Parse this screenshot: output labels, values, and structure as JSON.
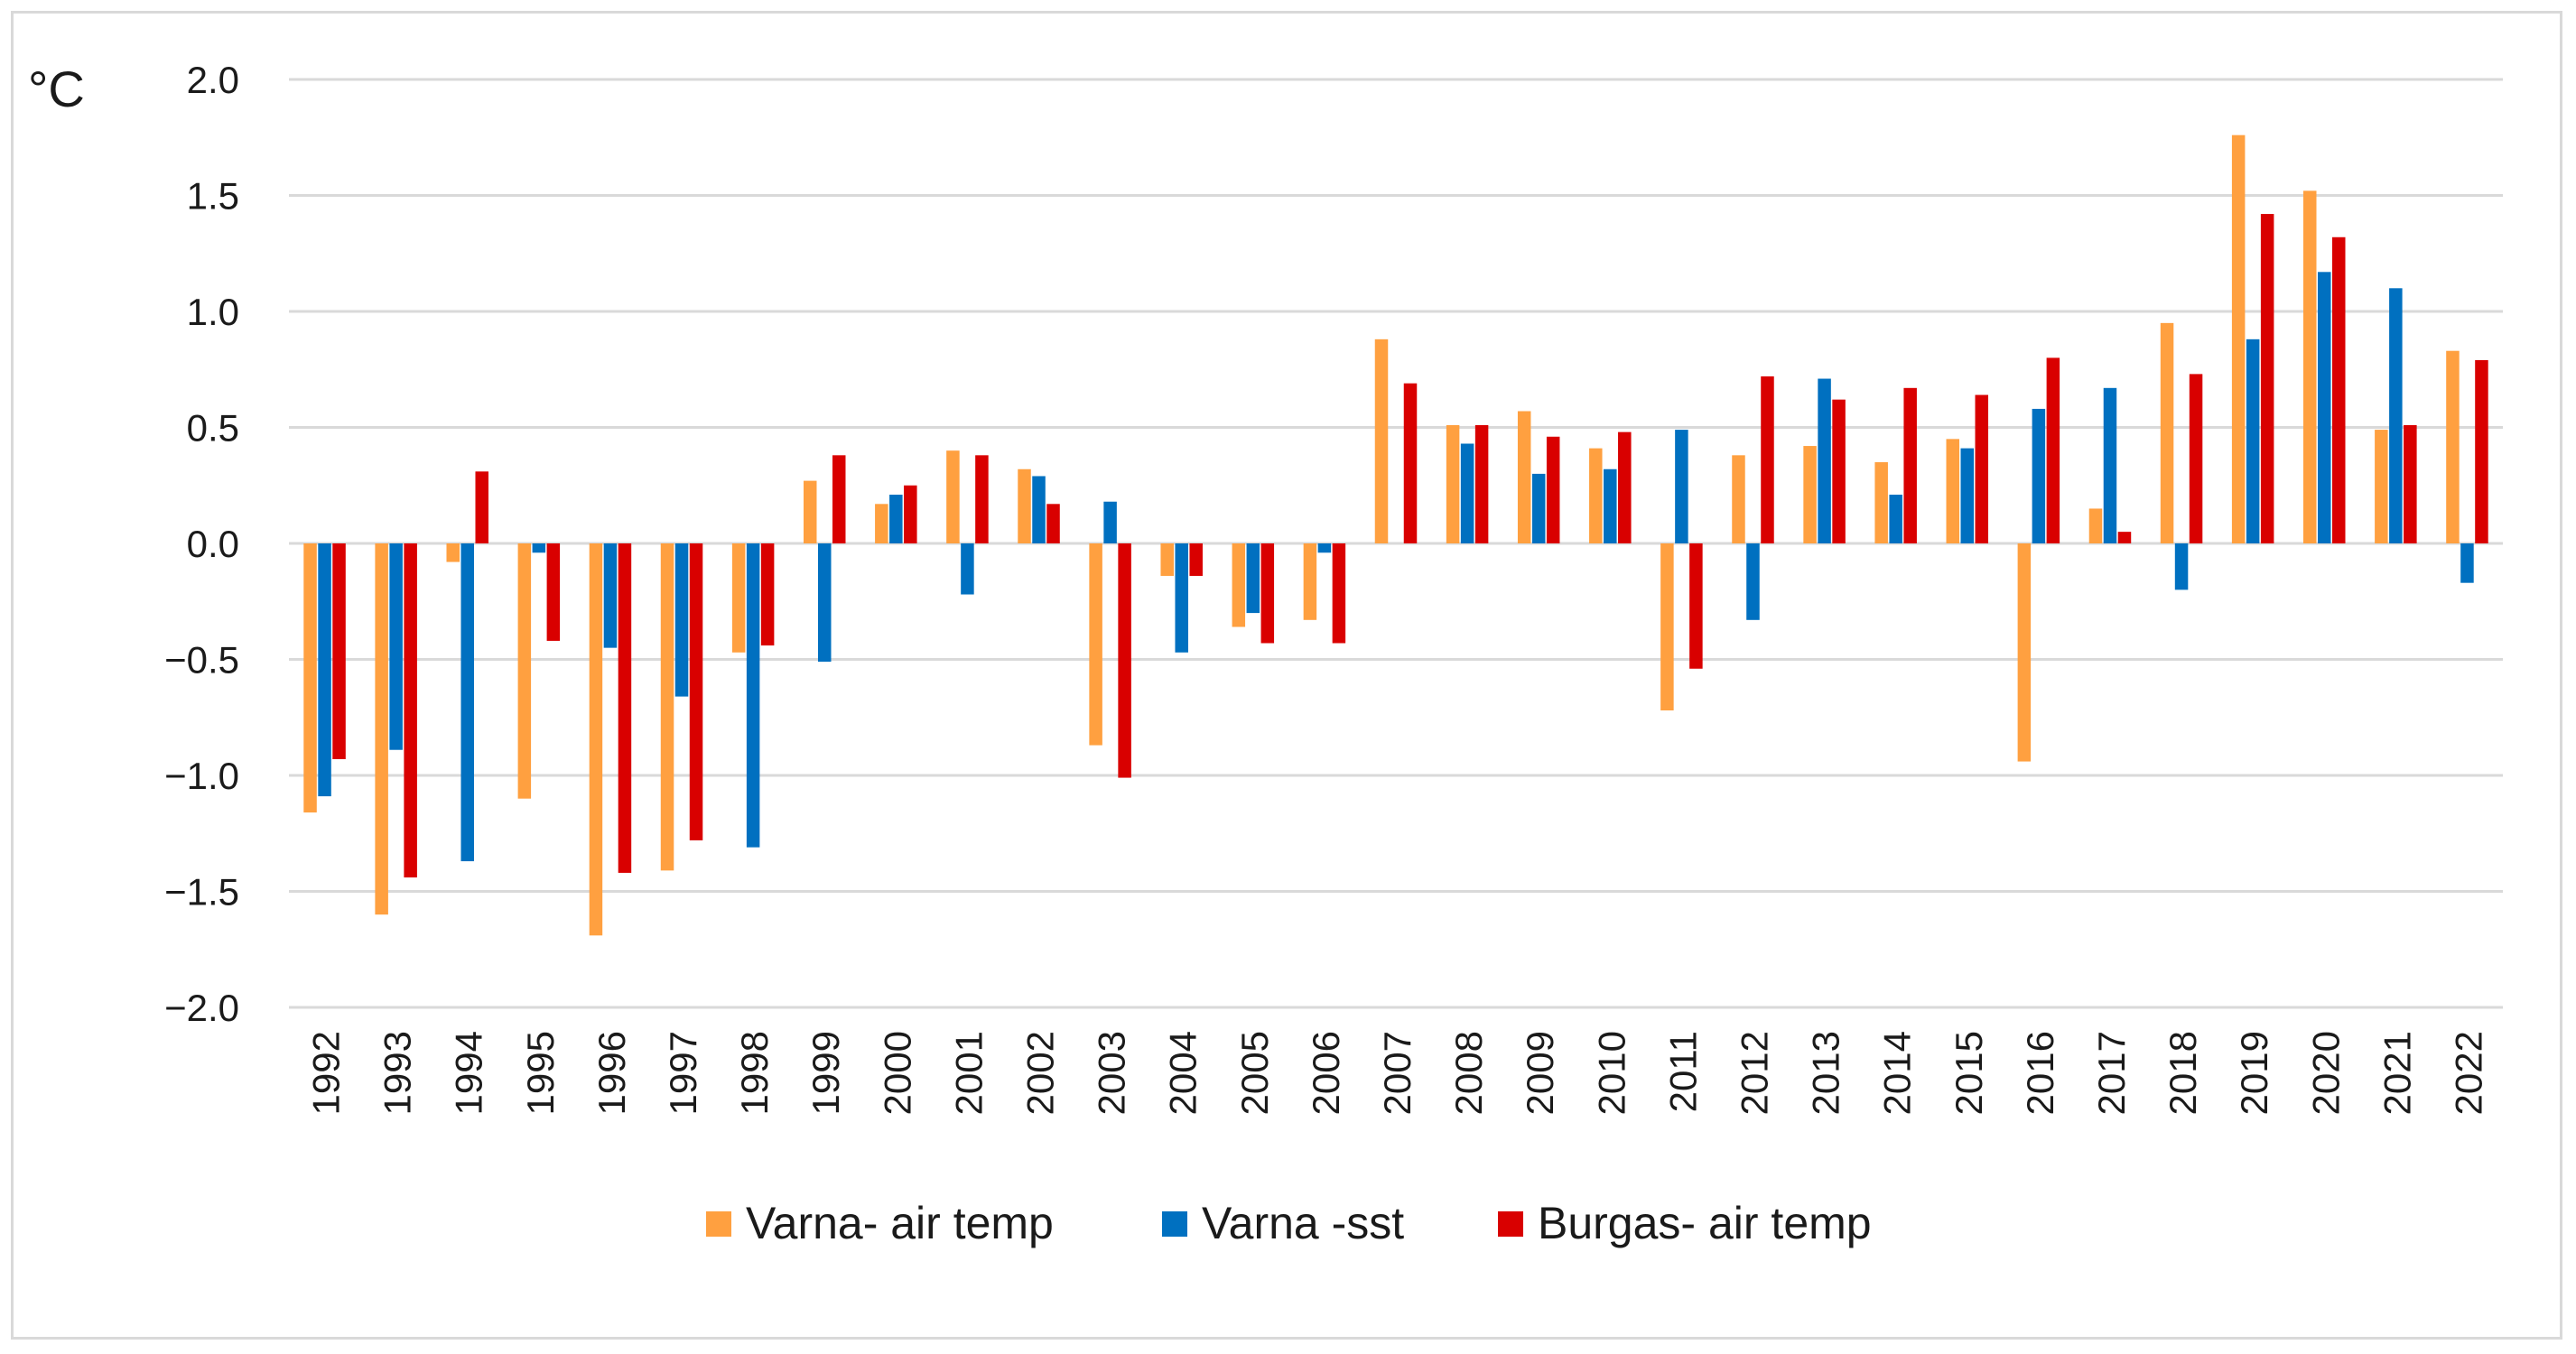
{
  "chart_data": {
    "type": "bar",
    "title": "",
    "xlabel": "",
    "ylabel": "°C",
    "ylim": [
      -2.0,
      2.0
    ],
    "yticks": [
      "2.0",
      "1.5",
      "1.0",
      "0.5",
      "0.0",
      "−0.5",
      "−1.0",
      "−1.5",
      "−2.0"
    ],
    "grid": true,
    "legend_position": "bottom",
    "categories": [
      "1992",
      "1993",
      "1994",
      "1995",
      "1996",
      "1997",
      "1998",
      "1999",
      "2000",
      "2001",
      "2002",
      "2003",
      "2004",
      "2005",
      "2006",
      "2007",
      "2008",
      "2009",
      "2010",
      "2011",
      "2012",
      "2013",
      "2014",
      "2015",
      "2016",
      "2017",
      "2018",
      "2019",
      "2020",
      "2021",
      "2022"
    ],
    "series": [
      {
        "name": "Varna- air temp",
        "color": "#FFA040",
        "values": [
          -1.16,
          -1.6,
          -0.08,
          -1.1,
          -1.69,
          -1.41,
          -0.47,
          0.27,
          0.17,
          0.4,
          0.32,
          -0.87,
          -0.14,
          -0.36,
          -0.33,
          0.88,
          0.51,
          0.57,
          0.41,
          -0.72,
          0.38,
          0.42,
          0.35,
          0.45,
          -0.94,
          0.15,
          0.95,
          1.76,
          1.52,
          0.49,
          0.83
        ]
      },
      {
        "name": "Varna -sst",
        "color": "#0070C0",
        "values": [
          -1.09,
          -0.89,
          -1.37,
          -0.04,
          -0.45,
          -0.66,
          -1.31,
          -0.51,
          0.21,
          -0.22,
          0.29,
          0.18,
          -0.47,
          -0.3,
          -0.04,
          0.0,
          0.43,
          0.3,
          0.32,
          0.49,
          -0.33,
          0.71,
          0.21,
          0.41,
          0.58,
          0.67,
          -0.2,
          0.88,
          1.17,
          1.1,
          -0.17
        ]
      },
      {
        "name": "Burgas- air temp",
        "color": "#D90000",
        "values": [
          -0.93,
          -1.44,
          0.31,
          -0.42,
          -1.42,
          -1.28,
          -0.44,
          0.38,
          0.25,
          0.38,
          0.17,
          -1.01,
          -0.14,
          -0.43,
          -0.43,
          0.69,
          0.51,
          0.46,
          0.48,
          -0.54,
          0.72,
          0.62,
          0.67,
          0.64,
          0.8,
          0.05,
          0.73,
          1.42,
          1.32,
          0.51,
          0.79
        ]
      }
    ]
  }
}
